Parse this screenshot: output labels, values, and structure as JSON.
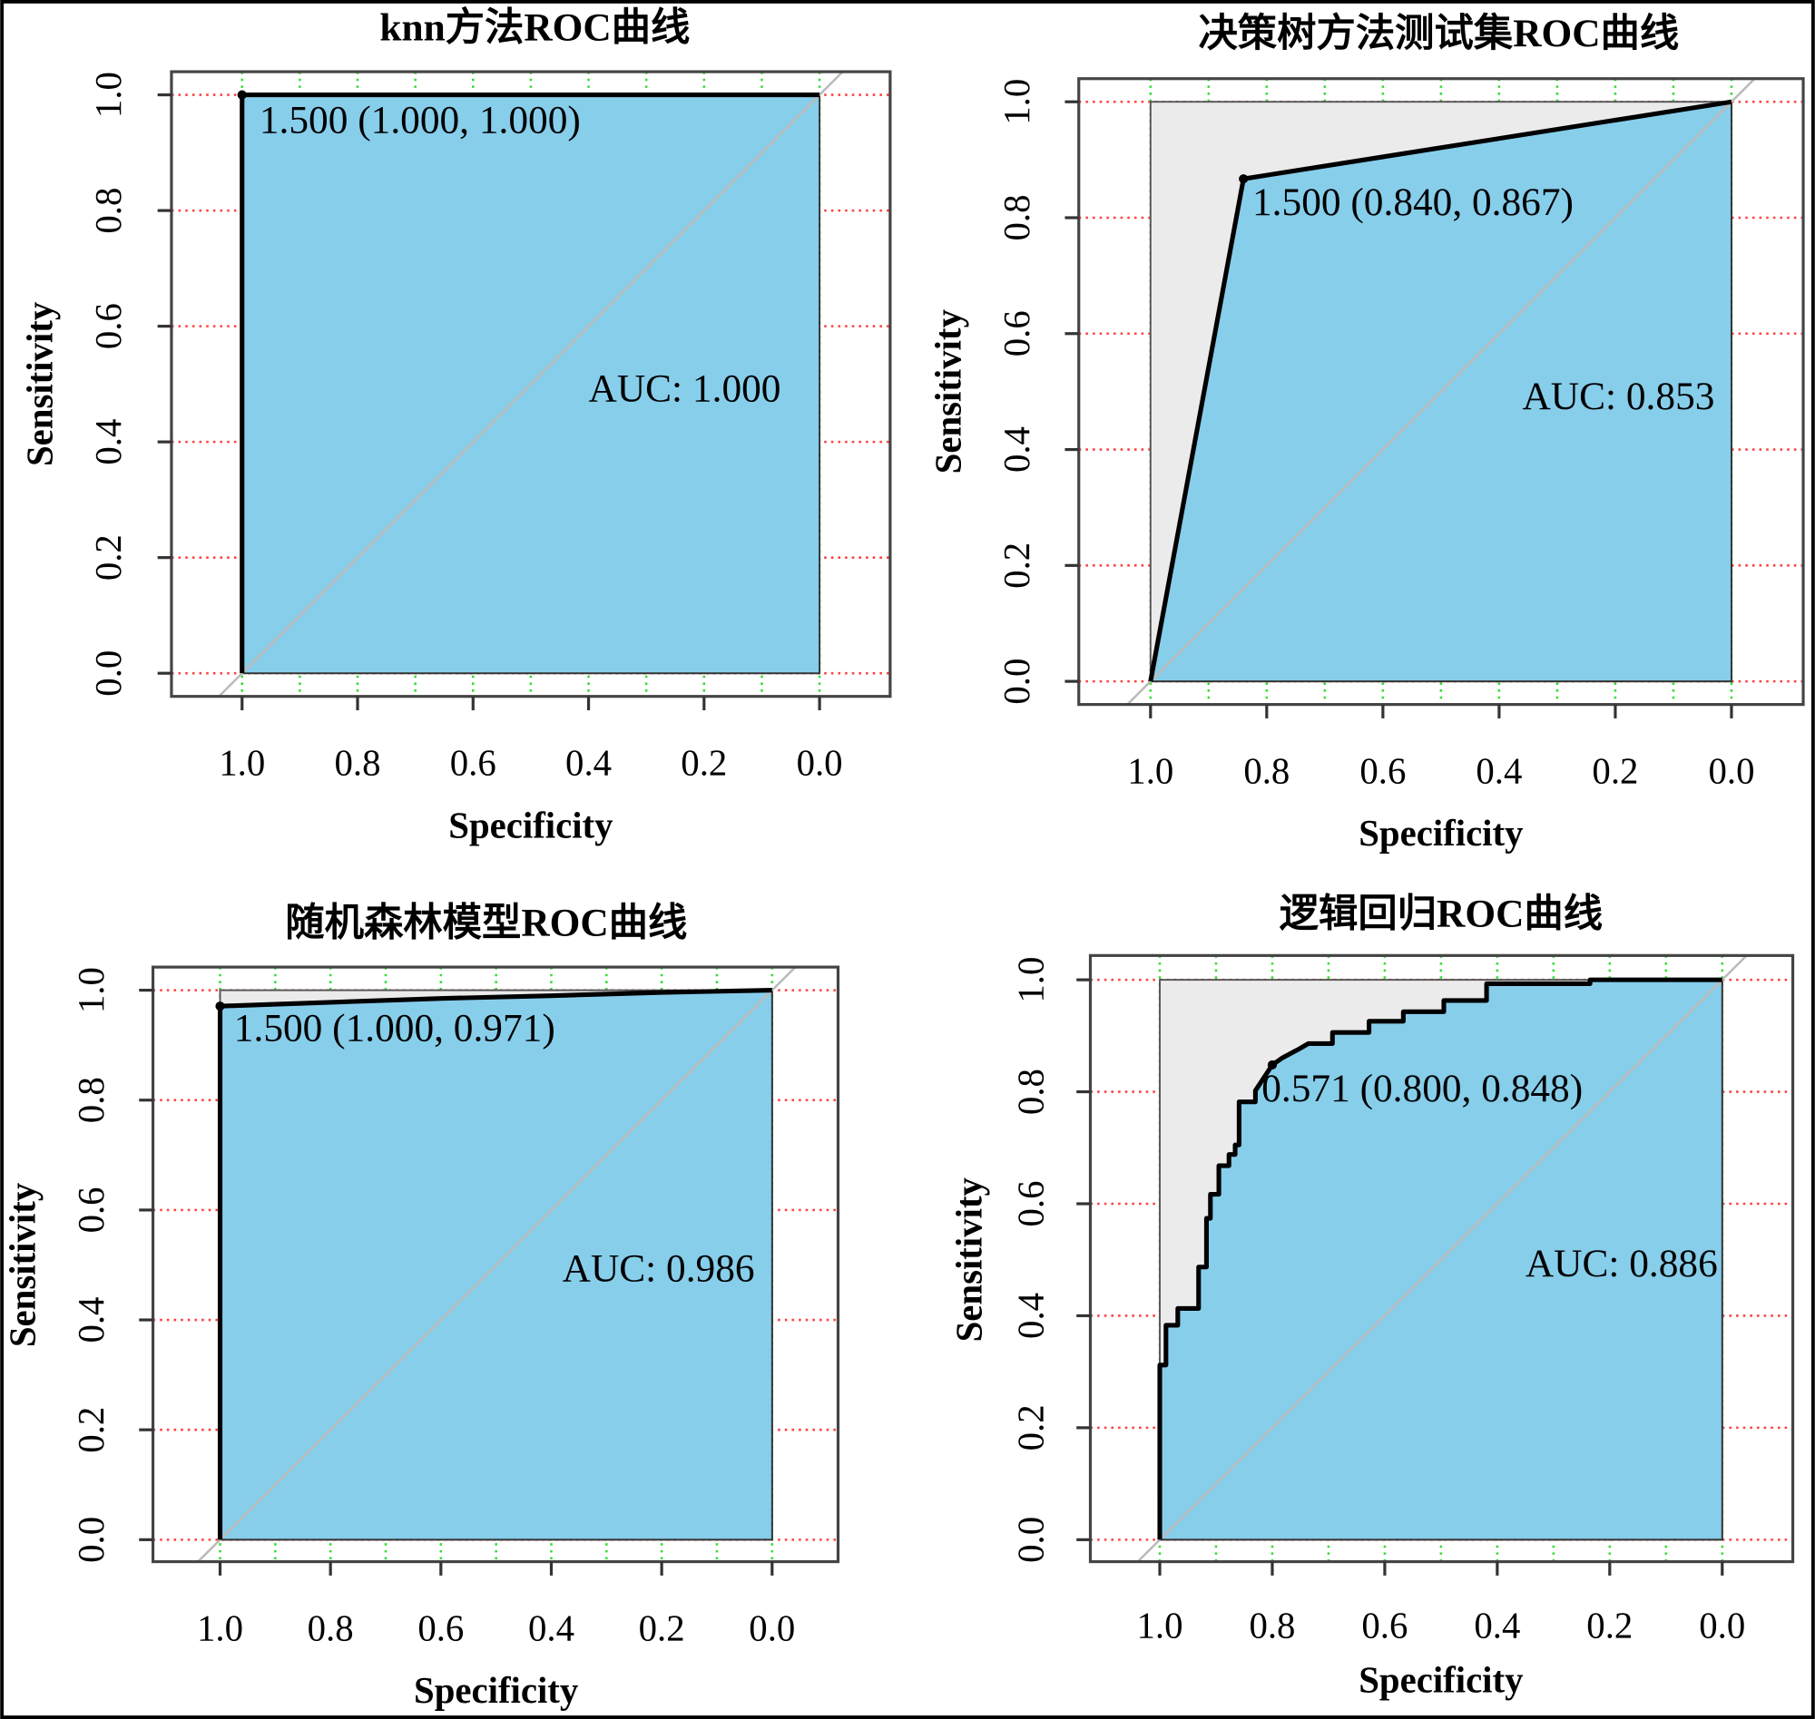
{
  "colors": {
    "fill": "#87CEEB",
    "unfilled": "#EBEBEB",
    "grid_h": "#FF4040",
    "grid_v": "#33DD33",
    "diagonal": "#BBBBBB",
    "curve": "#000000"
  },
  "chart_data": [
    {
      "type": "area",
      "title": "knn方法ROC曲线",
      "xlabel": "Specificity",
      "ylabel": "Sensitivity",
      "xlim": [
        1.0,
        0.0
      ],
      "ylim": [
        0.0,
        1.0
      ],
      "xticks": [
        "1.0",
        "0.8",
        "0.6",
        "0.4",
        "0.2",
        "0.0"
      ],
      "yticks": [
        "0.0",
        "0.2",
        "0.4",
        "0.6",
        "0.8",
        "1.0"
      ],
      "grid": true,
      "curve": [
        [
          1.0,
          0.0
        ],
        [
          1.0,
          1.0
        ],
        [
          0.0,
          1.0
        ]
      ],
      "best_point": {
        "specificity": 1.0,
        "sensitivity": 1.0,
        "label": "1.500 (1.000, 1.000)"
      },
      "auc_label": "AUC: 1.000"
    },
    {
      "type": "area",
      "title": "决策树方法测试集ROC曲线",
      "xlabel": "Specificity",
      "ylabel": "Sensitivity",
      "xlim": [
        1.0,
        0.0
      ],
      "ylim": [
        0.0,
        1.0
      ],
      "xticks": [
        "1.0",
        "0.8",
        "0.6",
        "0.4",
        "0.2",
        "0.0"
      ],
      "yticks": [
        "0.0",
        "0.2",
        "0.4",
        "0.6",
        "0.8",
        "1.0"
      ],
      "grid": true,
      "curve": [
        [
          1.0,
          0.0
        ],
        [
          0.84,
          0.867
        ],
        [
          0.0,
          1.0
        ]
      ],
      "best_point": {
        "specificity": 0.84,
        "sensitivity": 0.867,
        "label": "1.500 (0.840, 0.867)"
      },
      "auc_label": "AUC: 0.853"
    },
    {
      "type": "area",
      "title": "随机森林模型ROC曲线",
      "xlabel": "Specificity",
      "ylabel": "Sensitivity",
      "xlim": [
        1.0,
        0.0
      ],
      "ylim": [
        0.0,
        1.0
      ],
      "xticks": [
        "1.0",
        "0.8",
        "0.6",
        "0.4",
        "0.2",
        "0.0"
      ],
      "yticks": [
        "0.0",
        "0.2",
        "0.4",
        "0.6",
        "0.8",
        "1.0"
      ],
      "grid": true,
      "curve": [
        [
          1.0,
          0.0
        ],
        [
          1.0,
          0.971
        ],
        [
          0.8,
          0.978
        ],
        [
          0.6,
          0.985
        ],
        [
          0.4,
          0.99
        ],
        [
          0.2,
          0.996
        ],
        [
          0.0,
          1.0
        ]
      ],
      "best_point": {
        "specificity": 1.0,
        "sensitivity": 0.971,
        "label": "1.500 (1.000, 0.971)"
      },
      "auc_label": "AUC: 0.986"
    },
    {
      "type": "area",
      "title": "逻辑回归ROC曲线",
      "xlabel": "Specificity",
      "ylabel": "Sensitivity",
      "xlim": [
        1.0,
        0.0
      ],
      "ylim": [
        0.0,
        1.0
      ],
      "xticks": [
        "1.0",
        "0.8",
        "0.6",
        "0.4",
        "0.2",
        "0.0"
      ],
      "yticks": [
        "0.0",
        "0.2",
        "0.4",
        "0.6",
        "0.8",
        "1.0"
      ],
      "grid": true,
      "curve": [
        [
          1.0,
          0.0
        ],
        [
          1.0,
          0.312
        ],
        [
          0.989,
          0.312
        ],
        [
          0.989,
          0.383
        ],
        [
          0.968,
          0.383
        ],
        [
          0.968,
          0.413
        ],
        [
          0.931,
          0.413
        ],
        [
          0.931,
          0.487
        ],
        [
          0.917,
          0.487
        ],
        [
          0.917,
          0.574
        ],
        [
          0.91,
          0.574
        ],
        [
          0.91,
          0.617
        ],
        [
          0.895,
          0.617
        ],
        [
          0.895,
          0.668
        ],
        [
          0.877,
          0.668
        ],
        [
          0.877,
          0.688
        ],
        [
          0.866,
          0.688
        ],
        [
          0.866,
          0.705
        ],
        [
          0.859,
          0.705
        ],
        [
          0.859,
          0.782
        ],
        [
          0.83,
          0.782
        ],
        [
          0.83,
          0.802
        ],
        [
          0.8,
          0.848
        ],
        [
          0.783,
          0.86
        ],
        [
          0.755,
          0.875
        ],
        [
          0.736,
          0.886
        ],
        [
          0.693,
          0.886
        ],
        [
          0.693,
          0.906
        ],
        [
          0.628,
          0.906
        ],
        [
          0.628,
          0.926
        ],
        [
          0.567,
          0.926
        ],
        [
          0.567,
          0.943
        ],
        [
          0.495,
          0.943
        ],
        [
          0.495,
          0.963
        ],
        [
          0.419,
          0.963
        ],
        [
          0.419,
          0.993
        ],
        [
          0.235,
          0.993
        ],
        [
          0.235,
          1.0
        ],
        [
          0.0,
          1.0
        ]
      ],
      "best_point": {
        "specificity": 0.8,
        "sensitivity": 0.848,
        "label": "0.571 (0.800, 0.848)"
      },
      "auc_label": "AUC: 0.886"
    }
  ]
}
